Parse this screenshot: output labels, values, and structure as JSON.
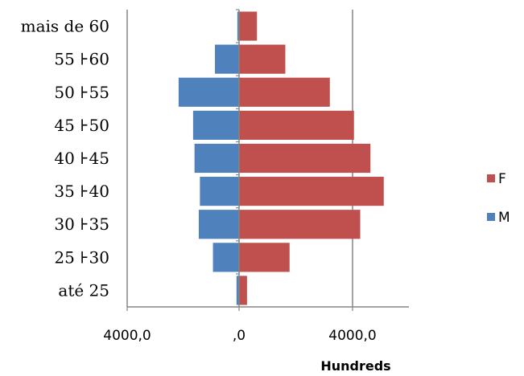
{
  "chart_data": {
    "type": "bar",
    "orientation": "horizontal",
    "categories": [
      "até 25",
      "25 ⊦30",
      "30 ⊦35",
      "35 ⊦40",
      "40 ⊦45",
      "45 ⊦50",
      "50 ⊦55",
      "55 ⊦60",
      "mais de 60"
    ],
    "series": [
      {
        "name": "F",
        "color": "#C0504D",
        "values": [
          280,
          1780,
          4270,
          5100,
          4630,
          4050,
          3200,
          1630,
          630
        ]
      },
      {
        "name": "M",
        "color": "#4F81BD",
        "values": [
          -90,
          -920,
          -1420,
          -1380,
          -1570,
          -1620,
          -2130,
          -850,
          -60
        ]
      }
    ],
    "xlim": [
      -4000,
      6000
    ],
    "xticks": [
      -4000,
      0,
      4000
    ],
    "xtick_labels": [
      "4000,0",
      ",0",
      "4000,0"
    ],
    "unit_label": "Hundreds",
    "grid": "vertical major gridlines",
    "legend": {
      "position": "right",
      "entries": [
        "F",
        "M"
      ]
    }
  }
}
